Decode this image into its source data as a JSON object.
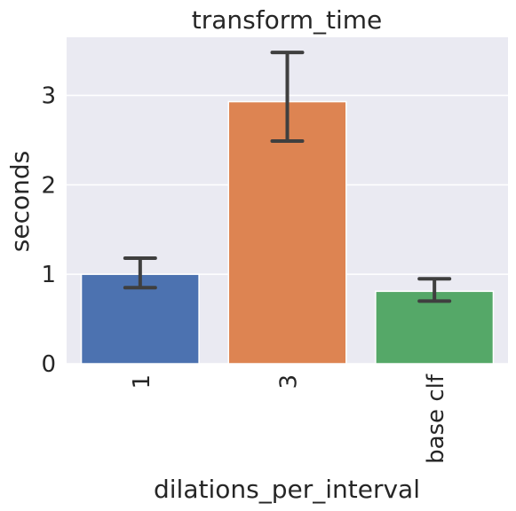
{
  "chart_data": {
    "type": "bar",
    "title": "transform_time",
    "xlabel": "dilations_per_interval",
    "ylabel": "seconds",
    "categories": [
      "1",
      "3",
      "base clf"
    ],
    "values": [
      1.0,
      2.93,
      0.81
    ],
    "error_low": [
      0.85,
      2.49,
      0.7
    ],
    "error_high": [
      1.18,
      3.48,
      0.95
    ],
    "colors": [
      "#4c72b0",
      "#dd8452",
      "#55a868"
    ],
    "ylim": [
      0,
      3.65
    ],
    "yticks": [
      "0",
      "1",
      "2",
      "3"
    ],
    "grid": true,
    "background": "#eaeaf2",
    "errorbar_color": "#3f3f3f"
  }
}
